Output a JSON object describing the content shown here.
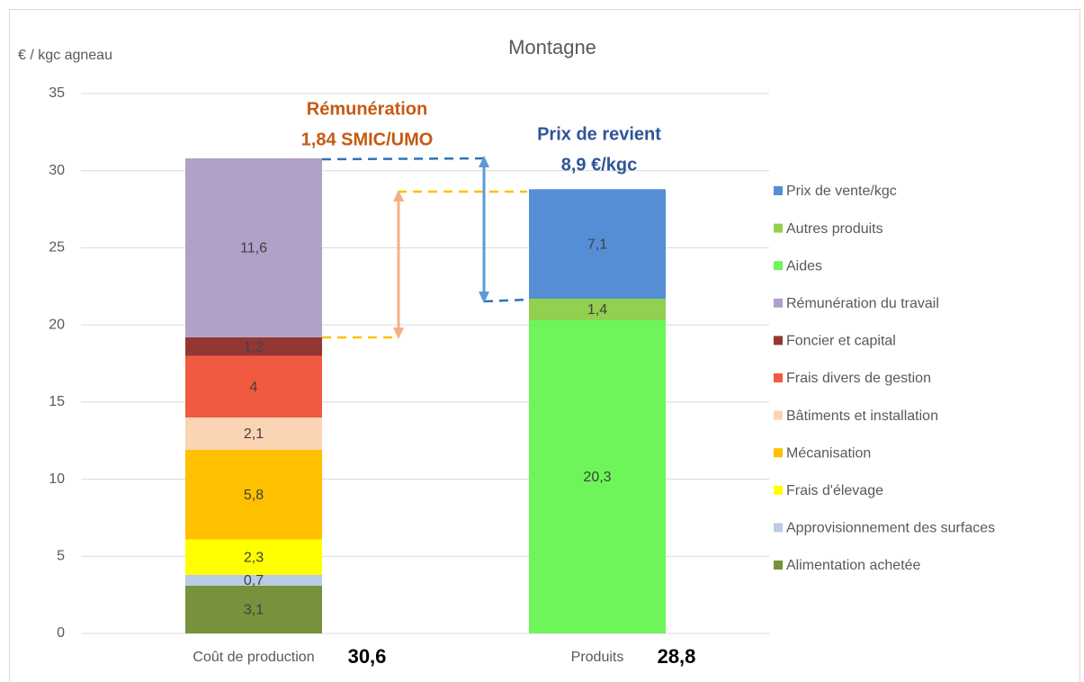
{
  "chart_data": {
    "type": "stacked-bar",
    "title": "Montagne",
    "y_label": "€ / kgc agneau",
    "categories": [
      "Coût de production",
      "Produits"
    ],
    "totals": [
      "30,6",
      "28,8"
    ],
    "annotations": [
      "Rémunération",
      "1,84 SMIC/UMO",
      "Prix de revient",
      "8,9 €/kgc"
    ],
    "ylim": [
      0,
      35
    ],
    "yticks": [
      0,
      5,
      10,
      15,
      20,
      25,
      30,
      35
    ],
    "grid": true,
    "legend": "right",
    "series": [
      {
        "name": "Alimentation achetée",
        "color": "#76923c",
        "values": [
          3.1,
          null
        ],
        "value_labels": [
          "3,1",
          null
        ]
      },
      {
        "name": "Approvisionnement des surfaces",
        "color": "#b8cce4",
        "values": [
          0.7,
          null
        ],
        "value_labels": [
          "0,7",
          null
        ]
      },
      {
        "name": "Frais d'élevage",
        "color": "#ffff00",
        "values": [
          2.3,
          null
        ],
        "value_labels": [
          "2,3",
          null
        ]
      },
      {
        "name": "Mécanisation",
        "color": "#ffc000",
        "values": [
          5.8,
          null
        ],
        "value_labels": [
          "5,8",
          null
        ]
      },
      {
        "name": "Bâtiments et installation",
        "color": "#fbd4b4",
        "values": [
          2.1,
          null
        ],
        "value_labels": [
          "2,1",
          null
        ]
      },
      {
        "name": "Frais divers de gestion",
        "color": "#f05a40",
        "values": [
          4,
          null
        ],
        "value_labels": [
          "4",
          null
        ]
      },
      {
        "name": "Foncier et capital",
        "color": "#943634",
        "values": [
          1.2,
          null
        ],
        "value_labels": [
          "1,2",
          null
        ]
      },
      {
        "name": "Rémunération du travail",
        "color": "#b1a0c7",
        "values": [
          11.6,
          null
        ],
        "value_labels": [
          "11,6",
          null
        ]
      },
      {
        "name": "Aides",
        "color": "#6ef55a",
        "values": [
          null,
          20.3
        ],
        "value_labels": [
          null,
          "20,3"
        ]
      },
      {
        "name": "Autres produits",
        "color": "#92d050",
        "values": [
          null,
          1.4
        ],
        "value_labels": [
          null,
          "1,4"
        ]
      },
      {
        "name": "Prix de vente/kgc",
        "color": "#558ed5",
        "values": [
          null,
          7.1
        ],
        "value_labels": [
          null,
          "7,1"
        ]
      }
    ]
  }
}
